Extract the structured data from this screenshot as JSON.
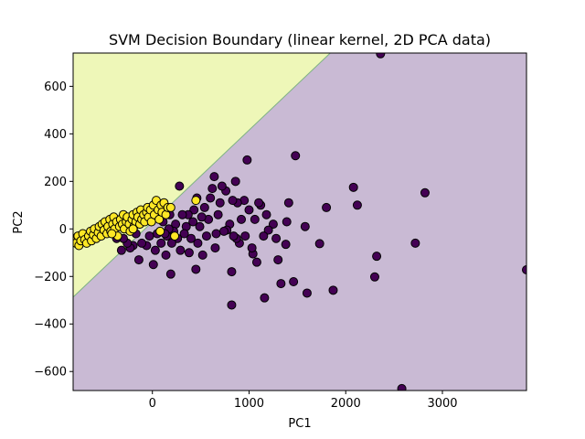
{
  "chart_data": {
    "type": "scatter",
    "title": "SVM Decision Boundary (linear kernel, 2D PCA data)",
    "xlabel": "PC1",
    "ylabel": "PC2",
    "xlim": [
      -820,
      3870
    ],
    "ylim": [
      -680,
      740
    ],
    "xticks": [
      0,
      1000,
      2000,
      3000
    ],
    "yticks": [
      -600,
      -400,
      -200,
      0,
      200,
      400,
      600
    ],
    "grid": false,
    "legend": "none",
    "colors": {
      "region_class_1": "#eef7b8",
      "region_class_0": "#c9bad4",
      "boundary": "#7fb383",
      "class_0_marker": "#440154",
      "class_1_marker": "#fde725",
      "marker_edge": "#000000"
    },
    "boundary_line": [
      [
        -820,
        -287
      ],
      [
        1840,
        740
      ]
    ],
    "series": [
      {
        "class": 0,
        "points": [
          [
            2360,
            737
          ],
          [
            1480,
            308
          ],
          [
            2820,
            152
          ],
          [
            3870,
            -172
          ],
          [
            2580,
            -672
          ],
          [
            2720,
            -60
          ],
          [
            2320,
            -115
          ],
          [
            2300,
            -202
          ],
          [
            2080,
            175
          ],
          [
            2120,
            100
          ],
          [
            1870,
            -258
          ],
          [
            1800,
            90
          ],
          [
            1730,
            -62
          ],
          [
            1600,
            -270
          ],
          [
            1580,
            10
          ],
          [
            1460,
            -222
          ],
          [
            1410,
            110
          ],
          [
            1390,
            30
          ],
          [
            1380,
            -65
          ],
          [
            1330,
            -230
          ],
          [
            1300,
            -130
          ],
          [
            1280,
            -40
          ],
          [
            1250,
            20
          ],
          [
            1200,
            -5
          ],
          [
            1180,
            60
          ],
          [
            1160,
            -290
          ],
          [
            1150,
            -30
          ],
          [
            1120,
            100
          ],
          [
            1100,
            110
          ],
          [
            1080,
            -140
          ],
          [
            1060,
            40
          ],
          [
            1040,
            -105
          ],
          [
            1030,
            -80
          ],
          [
            1000,
            80
          ],
          [
            980,
            290
          ],
          [
            960,
            -30
          ],
          [
            950,
            120
          ],
          [
            920,
            40
          ],
          [
            900,
            -60
          ],
          [
            880,
            110
          ],
          [
            870,
            -40
          ],
          [
            860,
            200
          ],
          [
            840,
            -30
          ],
          [
            830,
            120
          ],
          [
            820,
            -320
          ],
          [
            820,
            -180
          ],
          [
            800,
            20
          ],
          [
            770,
            -5
          ],
          [
            760,
            160
          ],
          [
            740,
            -10
          ],
          [
            720,
            180
          ],
          [
            700,
            110
          ],
          [
            680,
            60
          ],
          [
            660,
            -20
          ],
          [
            650,
            -80
          ],
          [
            640,
            220
          ],
          [
            620,
            170
          ],
          [
            600,
            130
          ],
          [
            580,
            40
          ],
          [
            560,
            -30
          ],
          [
            540,
            90
          ],
          [
            520,
            -110
          ],
          [
            510,
            50
          ],
          [
            490,
            10
          ],
          [
            470,
            -60
          ],
          [
            460,
            130
          ],
          [
            450,
            -170
          ],
          [
            430,
            80
          ],
          [
            420,
            30
          ],
          [
            400,
            -40
          ],
          [
            380,
            -100
          ],
          [
            370,
            60
          ],
          [
            350,
            10
          ],
          [
            330,
            -20
          ],
          [
            310,
            60
          ],
          [
            290,
            -90
          ],
          [
            280,
            180
          ],
          [
            260,
            -40
          ],
          [
            240,
            20
          ],
          [
            220,
            -10
          ],
          [
            200,
            -60
          ],
          [
            190,
            -190
          ],
          [
            180,
            60
          ],
          [
            170,
            0
          ],
          [
            150,
            -30
          ],
          [
            140,
            -110
          ],
          [
            130,
            -20
          ],
          [
            110,
            30
          ],
          [
            90,
            -60
          ],
          [
            70,
            70
          ],
          [
            50,
            -20
          ],
          [
            30,
            -90
          ],
          [
            10,
            -150
          ],
          [
            -10,
            60
          ],
          [
            -30,
            -30
          ],
          [
            -60,
            -70
          ],
          [
            -80,
            40
          ],
          [
            -110,
            -60
          ],
          [
            -140,
            -130
          ],
          [
            -170,
            -20
          ],
          [
            -200,
            -70
          ],
          [
            -230,
            -80
          ],
          [
            -260,
            -60
          ],
          [
            -300,
            -40
          ],
          [
            -320,
            -90
          ],
          [
            -350,
            10
          ],
          [
            -370,
            -40
          ]
        ]
      },
      {
        "class": 1,
        "points": [
          [
            -800,
            -40
          ],
          [
            -790,
            -60
          ],
          [
            -770,
            -30
          ],
          [
            -760,
            -70
          ],
          [
            -740,
            -50
          ],
          [
            -720,
            -20
          ],
          [
            -700,
            -45
          ],
          [
            -680,
            -60
          ],
          [
            -660,
            -30
          ],
          [
            -640,
            -10
          ],
          [
            -630,
            -50
          ],
          [
            -610,
            -25
          ],
          [
            -600,
            0
          ],
          [
            -580,
            -40
          ],
          [
            -560,
            -15
          ],
          [
            -550,
            10
          ],
          [
            -530,
            -30
          ],
          [
            -520,
            20
          ],
          [
            -500,
            -5
          ],
          [
            -490,
            30
          ],
          [
            -470,
            -20
          ],
          [
            -460,
            10
          ],
          [
            -440,
            40
          ],
          [
            -430,
            -10
          ],
          [
            -410,
            20
          ],
          [
            -400,
            50
          ],
          [
            -390,
            0
          ],
          [
            -370,
            30
          ],
          [
            -360,
            -30
          ],
          [
            -340,
            10
          ],
          [
            -330,
            40
          ],
          [
            -310,
            20
          ],
          [
            -300,
            60
          ],
          [
            -290,
            0
          ],
          [
            -270,
            30
          ],
          [
            -260,
            50
          ],
          [
            -240,
            20
          ],
          [
            -230,
            -10
          ],
          [
            -210,
            40
          ],
          [
            -200,
            60
          ],
          [
            -190,
            10
          ],
          [
            -170,
            30
          ],
          [
            -160,
            70
          ],
          [
            -150,
            50
          ],
          [
            -130,
            20
          ],
          [
            -120,
            80
          ],
          [
            -110,
            40
          ],
          [
            -90,
            60
          ],
          [
            -80,
            30
          ],
          [
            -60,
            70
          ],
          [
            -50,
            90
          ],
          [
            -40,
            50
          ],
          [
            -20,
            80
          ],
          [
            -10,
            30
          ],
          [
            10,
            100
          ],
          [
            20,
            60
          ],
          [
            40,
            120
          ],
          [
            60,
            80
          ],
          [
            70,
            40
          ],
          [
            90,
            100
          ],
          [
            100,
            70
          ],
          [
            120,
            110
          ],
          [
            140,
            60
          ],
          [
            160,
            90
          ],
          [
            190,
            90
          ],
          [
            230,
            -30
          ],
          [
            450,
            120
          ],
          [
            80,
            -10
          ],
          [
            -200,
            0
          ],
          [
            -420,
            -20
          ]
        ]
      }
    ]
  }
}
